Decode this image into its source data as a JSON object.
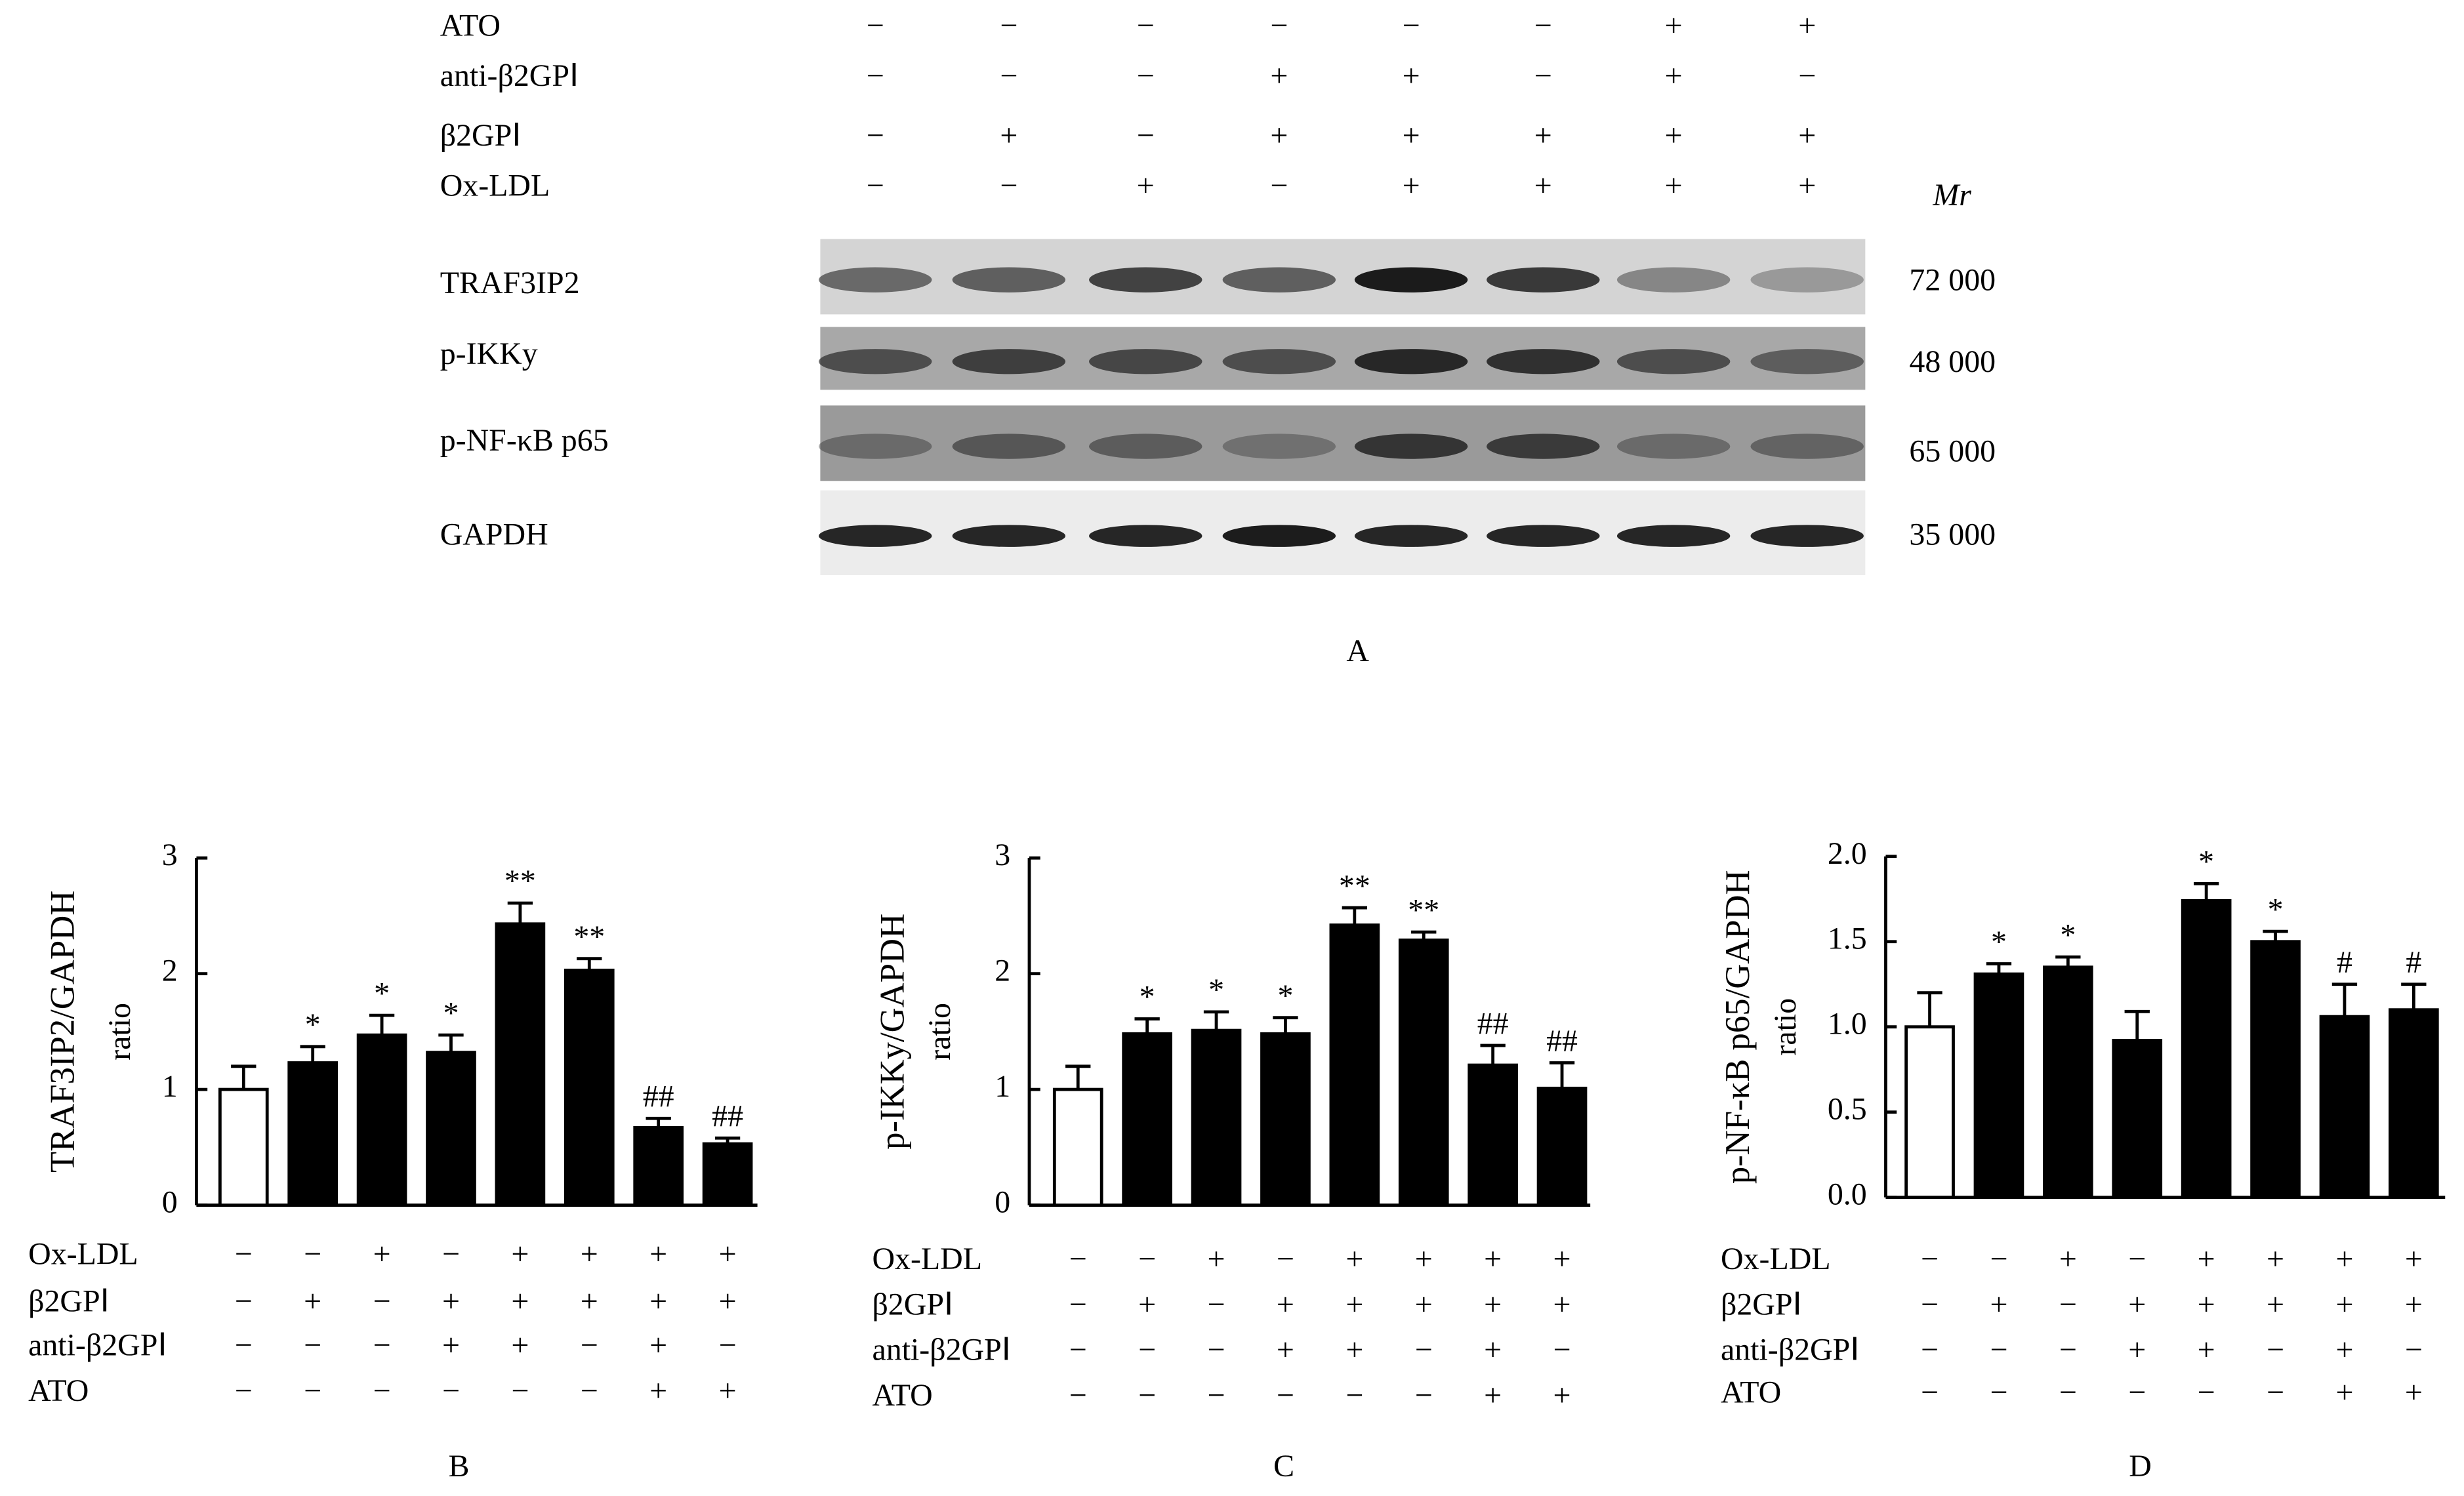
{
  "blot": {
    "conditions": [
      {
        "name": "ATO",
        "signs": [
          "−",
          "−",
          "−",
          "−",
          "−",
          "−",
          "+",
          "+"
        ]
      },
      {
        "name": "anti-β2GPⅠ",
        "signs": [
          "−",
          "−",
          "−",
          "+",
          "+",
          "−",
          "+",
          "−"
        ]
      },
      {
        "name": "β2GPⅠ",
        "signs": [
          "−",
          "+",
          "−",
          "+",
          "+",
          "+",
          "+",
          "+"
        ]
      },
      {
        "name": "Ox-LDL",
        "signs": [
          "−",
          "−",
          "+",
          "−",
          "+",
          "+",
          "+",
          "+"
        ]
      }
    ],
    "mr_label": "Mr",
    "bands": [
      {
        "name": "TRAF3IP2",
        "mr": "72 000"
      },
      {
        "name": "p-IKKy",
        "mr": "48 000"
      },
      {
        "name": "p-NF-κB p65",
        "mr": "65 000"
      },
      {
        "name": "GAPDH",
        "mr": "35 000"
      }
    ],
    "panel": "A"
  },
  "chart_data": [
    {
      "type": "bar",
      "panel": "B",
      "y_label": "TRAF3IP2/GAPDH",
      "y_label_2": "ratio",
      "values": [
        1.0,
        1.23,
        1.47,
        1.32,
        2.43,
        2.03,
        0.67,
        0.53
      ],
      "errors": [
        0.2,
        0.14,
        0.17,
        0.15,
        0.18,
        0.1,
        0.08,
        0.05
      ],
      "annotations": [
        null,
        "*",
        "*",
        "*",
        "**",
        "**",
        "##",
        "##"
      ],
      "colors": [
        "#ffffff",
        "#000000",
        "#000000",
        "#000000",
        "#000000",
        "#000000",
        "#000000",
        "#000000"
      ],
      "ylim": [
        0,
        3
      ],
      "yticks": [
        0,
        1,
        2,
        3
      ],
      "conditions": [
        {
          "name": "Ox-LDL",
          "signs": [
            "−",
            "−",
            "+",
            "−",
            "+",
            "+",
            "+",
            "+"
          ]
        },
        {
          "name": "β2GPⅠ",
          "signs": [
            "−",
            "+",
            "−",
            "+",
            "+",
            "+",
            "+",
            "+"
          ]
        },
        {
          "name": "anti-β2GPⅠ",
          "signs": [
            "−",
            "−",
            "−",
            "+",
            "+",
            "−",
            "+",
            "−"
          ]
        },
        {
          "name": "ATO",
          "signs": [
            "−",
            "−",
            "−",
            "−",
            "−",
            "−",
            "+",
            "+"
          ]
        }
      ]
    },
    {
      "type": "bar",
      "panel": "C",
      "y_label": "p-IKKy/GAPDH",
      "y_label_2": "ratio",
      "values": [
        1.0,
        1.48,
        1.51,
        1.48,
        2.42,
        2.29,
        1.21,
        1.01
      ],
      "errors": [
        0.2,
        0.13,
        0.16,
        0.14,
        0.15,
        0.07,
        0.17,
        0.22
      ],
      "annotations": [
        null,
        "*",
        "*",
        "*",
        "**",
        "**",
        "##",
        "##"
      ],
      "colors": [
        "#ffffff",
        "#000000",
        "#000000",
        "#000000",
        "#000000",
        "#000000",
        "#000000",
        "#000000"
      ],
      "ylim": [
        0,
        3
      ],
      "yticks": [
        0,
        1,
        2,
        3
      ],
      "conditions": [
        {
          "name": "Ox-LDL",
          "signs": [
            "−",
            "−",
            "+",
            "−",
            "+",
            "+",
            "+",
            "+"
          ]
        },
        {
          "name": "β2GPⅠ",
          "signs": [
            "−",
            "+",
            "−",
            "+",
            "+",
            "+",
            "+",
            "+"
          ]
        },
        {
          "name": "anti-β2GPⅠ",
          "signs": [
            "−",
            "−",
            "−",
            "+",
            "+",
            "−",
            "+",
            "−"
          ]
        },
        {
          "name": "ATO",
          "signs": [
            "−",
            "−",
            "−",
            "−",
            "−",
            "−",
            "+",
            "+"
          ]
        }
      ]
    },
    {
      "type": "bar",
      "panel": "D",
      "y_label": "p-NF-κB p65/GAPDH",
      "y_label_2": "ratio",
      "values": [
        1.0,
        1.31,
        1.35,
        0.92,
        1.74,
        1.5,
        1.06,
        1.1
      ],
      "errors": [
        0.2,
        0.06,
        0.06,
        0.17,
        0.1,
        0.06,
        0.19,
        0.15
      ],
      "annotations": [
        null,
        "*",
        "*",
        null,
        "*",
        "*",
        "#",
        "#"
      ],
      "colors": [
        "#ffffff",
        "#000000",
        "#000000",
        "#000000",
        "#000000",
        "#000000",
        "#000000",
        "#000000"
      ],
      "ylim": [
        0,
        2
      ],
      "yticks": [
        {
          "value": 0,
          "label": "0.0"
        },
        0.5,
        {
          "value": 1,
          "label": "1.0"
        },
        1.5,
        {
          "value": 2,
          "label": "2.0"
        }
      ],
      "conditions": [
        {
          "name": "Ox-LDL",
          "signs": [
            "−",
            "−",
            "+",
            "−",
            "+",
            "+",
            "+",
            "+"
          ]
        },
        {
          "name": "β2GPⅠ",
          "signs": [
            "−",
            "+",
            "−",
            "+",
            "+",
            "+",
            "+",
            "+"
          ]
        },
        {
          "name": "anti-β2GPⅠ",
          "signs": [
            "−",
            "−",
            "−",
            "+",
            "+",
            "−",
            "+",
            "−"
          ]
        },
        {
          "name": "ATO",
          "signs": [
            "−",
            "−",
            "−",
            "−",
            "−",
            "−",
            "+",
            "+"
          ]
        }
      ]
    }
  ]
}
